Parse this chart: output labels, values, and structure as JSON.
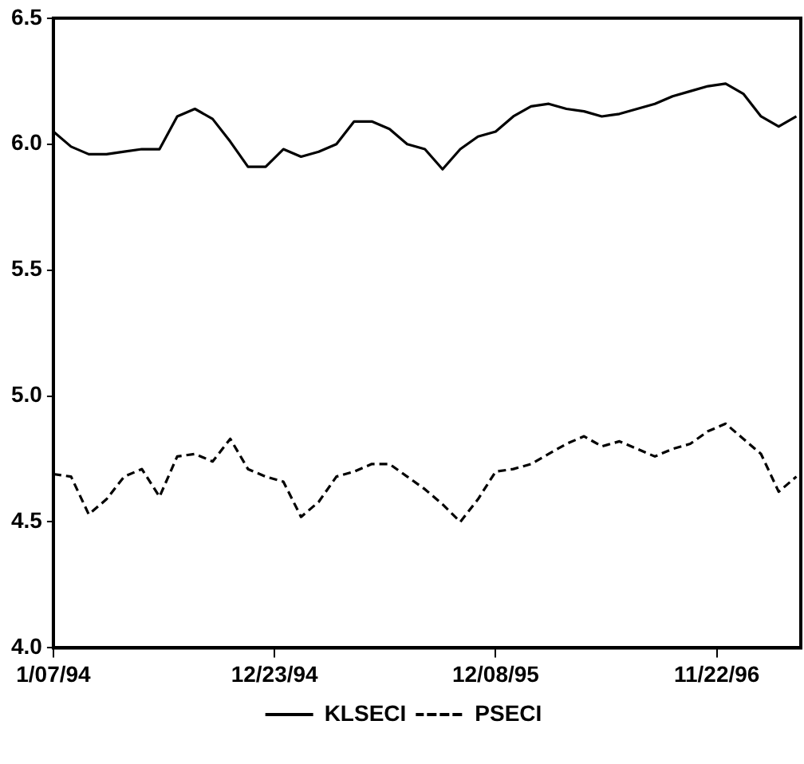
{
  "chart_data": {
    "type": "line",
    "x": [
      "1994-01-07",
      "1994-02-04",
      "1994-03-04",
      "1994-04-01",
      "1994-04-29",
      "1994-05-27",
      "1994-06-24",
      "1994-07-22",
      "1994-08-19",
      "1994-09-16",
      "1994-10-14",
      "1994-11-11",
      "1994-12-09",
      "1995-01-06",
      "1995-02-03",
      "1995-03-03",
      "1995-03-31",
      "1995-04-28",
      "1995-05-26",
      "1995-06-23",
      "1995-07-21",
      "1995-08-18",
      "1995-09-15",
      "1995-10-13",
      "1995-11-10",
      "1995-12-08",
      "1996-01-05",
      "1996-02-02",
      "1996-03-01",
      "1996-03-29",
      "1996-04-26",
      "1996-05-24",
      "1996-06-21",
      "1996-07-19",
      "1996-08-16",
      "1996-09-13",
      "1996-10-11",
      "1996-11-08",
      "1996-12-06",
      "1997-01-03",
      "1997-01-31",
      "1997-02-28",
      "1997-03-28"
    ],
    "series": [
      {
        "name": "KLSECI",
        "color": "#000000",
        "line_style": "solid",
        "values": [
          6.05,
          5.99,
          5.96,
          5.96,
          5.97,
          5.98,
          5.98,
          6.11,
          6.14,
          6.1,
          6.01,
          5.91,
          5.91,
          5.98,
          5.95,
          5.97,
          6.0,
          6.09,
          6.09,
          6.06,
          6.0,
          5.98,
          5.9,
          5.98,
          6.03,
          6.05,
          6.11,
          6.15,
          6.16,
          6.14,
          6.13,
          6.11,
          6.12,
          6.14,
          6.16,
          6.19,
          6.21,
          6.23,
          6.24,
          6.2,
          6.11,
          6.07,
          6.11
        ]
      },
      {
        "name": "PSECI",
        "color": "#000000",
        "line_style": "dashed",
        "values": [
          4.69,
          4.68,
          4.53,
          4.59,
          4.68,
          4.71,
          4.6,
          4.76,
          4.77,
          4.74,
          4.83,
          4.71,
          4.68,
          4.66,
          4.52,
          4.58,
          4.68,
          4.7,
          4.73,
          4.73,
          4.68,
          4.63,
          4.57,
          4.5,
          4.59,
          4.7,
          4.71,
          4.73,
          4.77,
          4.81,
          4.84,
          4.8,
          4.82,
          4.79,
          4.76,
          4.79,
          4.81,
          4.86,
          4.89,
          4.83,
          4.77,
          4.62,
          4.68
        ]
      }
    ],
    "xlim": [
      "1994-01-07",
      "1997-04-04"
    ],
    "xticks": [
      {
        "value": "1994-01-07",
        "label": "1/07/94"
      },
      {
        "value": "1994-12-23",
        "label": "12/23/94"
      },
      {
        "value": "1995-12-08",
        "label": "12/08/95"
      },
      {
        "value": "1996-11-22",
        "label": "11/22/96"
      }
    ],
    "ylim": [
      4.0,
      6.5
    ],
    "yticks": [
      {
        "value": 4.0,
        "label": "4.0"
      },
      {
        "value": 4.5,
        "label": "4.5"
      },
      {
        "value": 5.0,
        "label": "5.0"
      },
      {
        "value": 5.5,
        "label": "5.5"
      },
      {
        "value": 6.0,
        "label": "6.0"
      },
      {
        "value": 6.5,
        "label": "6.5"
      }
    ],
    "grid": false,
    "legend": "bottom"
  }
}
